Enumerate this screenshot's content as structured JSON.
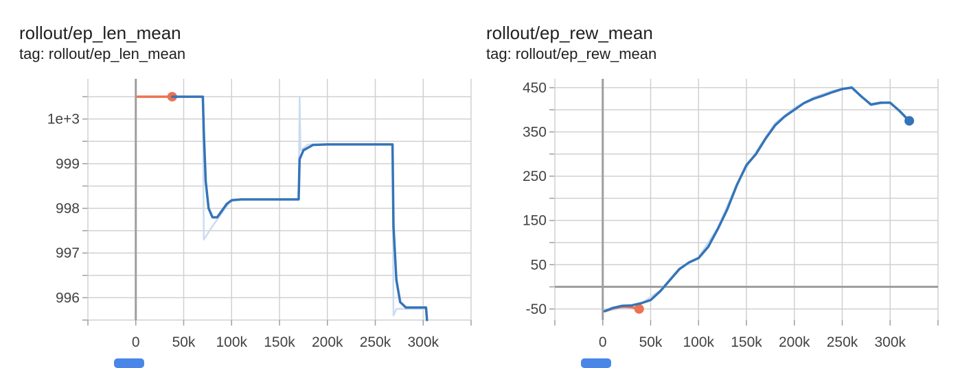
{
  "cards": [
    {
      "title": "rollout/ep_len_mean",
      "tag": "tag: rollout/ep_len_mean"
    },
    {
      "title": "rollout/ep_rew_mean",
      "tag": "tag: rollout/ep_rew_mean"
    }
  ],
  "colors": {
    "series_blue": "#3474b8",
    "series_blue_raw": "#cbdcef",
    "series_orange": "#ec7250",
    "grid": "#d0d0d0",
    "axis": "#9e9e9e"
  },
  "chart_data": [
    {
      "type": "line",
      "title": "rollout/ep_len_mean",
      "xlabel": "",
      "ylabel": "",
      "xlim": [
        -50000,
        350000
      ],
      "ylim": [
        995.5,
        1000.9
      ],
      "grid": true,
      "x_ticks": [
        0,
        50000,
        100000,
        150000,
        200000,
        250000,
        300000
      ],
      "x_tick_labels": [
        "0",
        "50k",
        "100k",
        "150k",
        "200k",
        "250k",
        "300k"
      ],
      "y_ticks": [
        996,
        997,
        998,
        999,
        1000
      ],
      "y_tick_labels": [
        "996",
        "997",
        "998",
        "999",
        "1e+3"
      ],
      "series": [
        {
          "color": "orange",
          "points": [
            [
              2000,
              1000.5
            ],
            [
              38000,
              1000.5
            ]
          ],
          "end_marker": true
        },
        {
          "color": "blue",
          "points": [
            [
              38000,
              1000.5
            ],
            [
              70000,
              1000.5
            ],
            [
              71000,
              999.7
            ],
            [
              73000,
              998.6
            ],
            [
              76000,
              998.0
            ],
            [
              80000,
              997.8
            ],
            [
              85000,
              997.8
            ],
            [
              90000,
              997.95
            ],
            [
              95000,
              998.1
            ],
            [
              100000,
              998.18
            ],
            [
              110000,
              998.2
            ],
            [
              170000,
              998.2
            ],
            [
              171000,
              999.1
            ],
            [
              175000,
              999.3
            ],
            [
              185000,
              999.42
            ],
            [
              200000,
              999.43
            ],
            [
              268000,
              999.43
            ],
            [
              269000,
              997.6
            ],
            [
              272000,
              996.4
            ],
            [
              276000,
              995.9
            ],
            [
              282000,
              995.78
            ],
            [
              303000,
              995.78
            ],
            [
              304000,
              995.5
            ]
          ],
          "end_marker": false
        },
        {
          "color": "blue_raw",
          "points": [
            [
              70000,
              1000.5
            ],
            [
              71000,
              997.3
            ],
            [
              80000,
              997.6
            ],
            [
              100000,
              998.2
            ],
            [
              170000,
              998.2
            ],
            [
              171000,
              1000.5
            ],
            [
              172000,
              999.3
            ],
            [
              180000,
              999.43
            ],
            [
              268000,
              999.43
            ],
            [
              269000,
              995.6
            ],
            [
              272000,
              995.75
            ],
            [
              303000,
              995.75
            ]
          ],
          "end_marker": false
        }
      ]
    },
    {
      "type": "line",
      "title": "rollout/ep_rew_mean",
      "xlabel": "",
      "ylabel": "",
      "xlim": [
        -50000,
        350000
      ],
      "ylim": [
        -75,
        470
      ],
      "grid": true,
      "x_ticks": [
        0,
        50000,
        100000,
        150000,
        200000,
        250000,
        300000
      ],
      "x_tick_labels": [
        "0",
        "50k",
        "100k",
        "150k",
        "200k",
        "250k",
        "300k"
      ],
      "y_ticks": [
        -50,
        50,
        150,
        250,
        350,
        450
      ],
      "y_tick_labels": [
        "-50",
        "50",
        "150",
        "250",
        "350",
        "450"
      ],
      "series": [
        {
          "color": "orange",
          "points": [
            [
              2000,
              -55
            ],
            [
              10000,
              -49
            ],
            [
              20000,
              -45
            ],
            [
              30000,
              -46
            ],
            [
              38000,
              -50
            ]
          ],
          "end_marker": true
        },
        {
          "color": "blue",
          "points": [
            [
              2000,
              -55
            ],
            [
              10000,
              -48
            ],
            [
              20000,
              -43
            ],
            [
              30000,
              -42
            ],
            [
              40000,
              -37
            ],
            [
              50000,
              -30
            ],
            [
              60000,
              -10
            ],
            [
              70000,
              15
            ],
            [
              80000,
              40
            ],
            [
              90000,
              55
            ],
            [
              100000,
              65
            ],
            [
              110000,
              90
            ],
            [
              120000,
              130
            ],
            [
              130000,
              175
            ],
            [
              140000,
              230
            ],
            [
              150000,
              275
            ],
            [
              160000,
              300
            ],
            [
              170000,
              335
            ],
            [
              180000,
              365
            ],
            [
              190000,
              385
            ],
            [
              200000,
              400
            ],
            [
              210000,
              415
            ],
            [
              220000,
              425
            ],
            [
              230000,
              432
            ],
            [
              240000,
              440
            ],
            [
              250000,
              447
            ],
            [
              260000,
              450
            ],
            [
              270000,
              430
            ],
            [
              280000,
              412
            ],
            [
              290000,
              416
            ],
            [
              300000,
              416
            ],
            [
              310000,
              397
            ],
            [
              320000,
              375
            ]
          ],
          "end_marker": true
        },
        {
          "color": "blue_raw",
          "points": [
            [
              2000,
              -56
            ],
            [
              40000,
              -38
            ],
            [
              60000,
              -8
            ],
            [
              80000,
              42
            ],
            [
              100000,
              67
            ],
            [
              120000,
              133
            ],
            [
              140000,
              233
            ],
            [
              160000,
              305
            ],
            [
              180000,
              370
            ],
            [
              200000,
              404
            ],
            [
              220000,
              428
            ],
            [
              240000,
              443
            ],
            [
              260000,
              452
            ],
            [
              280000,
              410
            ],
            [
              300000,
              418
            ],
            [
              320000,
              373
            ]
          ],
          "end_marker": false
        }
      ]
    }
  ]
}
